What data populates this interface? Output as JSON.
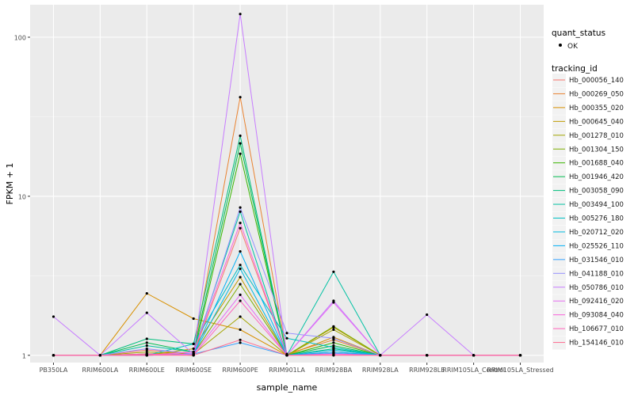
{
  "chart_data": {
    "type": "line",
    "xlabel": "sample_name",
    "ylabel": "FPKM + 1",
    "yscale": "log",
    "ylim": [
      0.9,
      160
    ],
    "yticks": [
      1,
      10,
      100
    ],
    "ytick_labels": [
      "1",
      "10",
      "100"
    ],
    "grid": true,
    "legend_placement": "right",
    "categories": [
      "PB350LA",
      "RRIM600LA",
      "RRIM600LE",
      "RRIM600SE",
      "RRIM600PE",
      "RRIM901LA",
      "RRIM928BA",
      "RRIM928LA",
      "RRIM928LE",
      "RRIM105LA_Control",
      "RRIM105LA_Stressed"
    ],
    "point_legend": {
      "title": "quant_status",
      "label": "OK"
    },
    "series_legend_title": "tracking_id",
    "series": [
      {
        "name": "Hb_000056_140",
        "color": "#F8766D",
        "values": [
          1,
          1,
          1.08,
          1.02,
          6.3,
          1,
          1.05,
          1,
          1,
          1,
          1
        ]
      },
      {
        "name": "Hb_000269_050",
        "color": "#EA8331",
        "values": [
          1,
          1,
          1.02,
          1.05,
          42,
          1.02,
          1.25,
          1,
          1,
          1,
          1
        ]
      },
      {
        "name": "Hb_000355_020",
        "color": "#D89000",
        "values": [
          1,
          1,
          2.45,
          1.7,
          1.45,
          1,
          1.3,
          1,
          1,
          1,
          1
        ]
      },
      {
        "name": "Hb_000645_040",
        "color": "#C09B00",
        "values": [
          1,
          1,
          1,
          1.1,
          3.1,
          1,
          1.5,
          1,
          1,
          1,
          1
        ]
      },
      {
        "name": "Hb_001278_010",
        "color": "#A3A500",
        "values": [
          1,
          1,
          1.05,
          1.02,
          1.75,
          1,
          1.45,
          1,
          1,
          1,
          1
        ]
      },
      {
        "name": "Hb_001304_150",
        "color": "#7CAE00",
        "values": [
          1,
          1,
          1,
          1.02,
          2.8,
          1,
          1.52,
          1,
          1,
          1,
          1
        ]
      },
      {
        "name": "Hb_001688_040",
        "color": "#39B600",
        "values": [
          1,
          1,
          1.02,
          1,
          18.5,
          1,
          1.2,
          1,
          1,
          1,
          1
        ]
      },
      {
        "name": "Hb_001946_420",
        "color": "#00BB4E",
        "values": [
          1,
          1,
          1.2,
          1.05,
          21.5,
          1,
          1.15,
          1,
          1,
          1,
          1
        ]
      },
      {
        "name": "Hb_003058_090",
        "color": "#00BF7D",
        "values": [
          1,
          1,
          1.27,
          1.18,
          24,
          1,
          1.1,
          1,
          1,
          1,
          1
        ]
      },
      {
        "name": "Hb_003494_100",
        "color": "#00C1A3",
        "values": [
          1,
          1,
          1.15,
          1.05,
          8,
          1,
          3.35,
          1,
          1,
          1,
          1
        ]
      },
      {
        "name": "Hb_005276_180",
        "color": "#00BFC4",
        "values": [
          1,
          1,
          1,
          1.18,
          3.7,
          1.28,
          1.12,
          1,
          1,
          1,
          1
        ]
      },
      {
        "name": "Hb_020712_020",
        "color": "#00BAE0",
        "values": [
          1,
          1,
          1,
          1.02,
          3.5,
          1,
          1.08,
          1,
          1,
          1,
          1
        ]
      },
      {
        "name": "Hb_025526_110",
        "color": "#00B0F6",
        "values": [
          1,
          1,
          1,
          1.02,
          4.5,
          1,
          1.05,
          1,
          1,
          1,
          1
        ]
      },
      {
        "name": "Hb_031546_010",
        "color": "#35A2FF",
        "values": [
          1,
          1,
          1,
          1.02,
          1.2,
          1,
          1.03,
          1,
          1,
          1,
          1
        ]
      },
      {
        "name": "Hb_041188_010",
        "color": "#9590FF",
        "values": [
          1,
          1,
          1.1,
          1.02,
          8.5,
          1.38,
          1.28,
          1,
          1,
          1,
          1
        ]
      },
      {
        "name": "Hb_050786_010",
        "color": "#C77CFF",
        "values": [
          1.75,
          1,
          1.85,
          1.02,
          140,
          1,
          2.2,
          1,
          1.8,
          1,
          1
        ]
      },
      {
        "name": "Hb_092416_020",
        "color": "#E76BF3",
        "values": [
          1,
          1,
          1,
          1.02,
          2.4,
          1,
          2.15,
          1,
          1,
          1,
          1
        ]
      },
      {
        "name": "Hb_093084_040",
        "color": "#FA62DB",
        "values": [
          1,
          1,
          1,
          1.05,
          6.8,
          1,
          1.02,
          1,
          1,
          1,
          1
        ]
      },
      {
        "name": "Hb_106677_010",
        "color": "#FF62BC",
        "values": [
          1,
          1,
          1.02,
          1,
          2.2,
          1,
          1,
          1,
          1,
          1,
          1
        ]
      },
      {
        "name": "Hb_154146_010",
        "color": "#FF6C91",
        "values": [
          1,
          1,
          1,
          1,
          1.25,
          1,
          1,
          1,
          1,
          1,
          1
        ]
      }
    ]
  }
}
